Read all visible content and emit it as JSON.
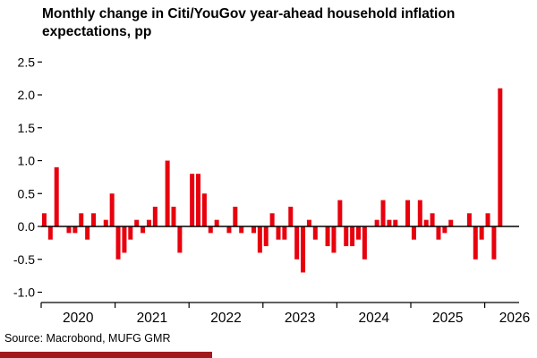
{
  "title": "Monthly change in Citi/YouGov year-ahead household inflation expectations, pp",
  "source": "Source: Macrobond, MUFG GMR",
  "colors": {
    "bar": "#e8000d",
    "axis": "#000000",
    "text": "#000000",
    "brand_strip": "#a01a1d",
    "background": "#ffffff"
  },
  "chart_data": {
    "type": "bar",
    "title": "Monthly change in Citi/YouGov year-ahead household inflation expectations, pp",
    "xlabel": "",
    "ylabel": "pp",
    "ylim": [
      -1.0,
      2.5
    ],
    "grid": false,
    "y_ticks": [
      "2.5",
      "2.0",
      "1.5",
      "1.0",
      "0.5",
      "0.0",
      "-0.5",
      "-1.0"
    ],
    "y_tick_values": [
      2.5,
      2.0,
      1.5,
      1.0,
      0.5,
      0.0,
      -0.5,
      -1.0
    ],
    "x_tick_years": [
      "2020",
      "2021",
      "2022",
      "2023",
      "2024",
      "2025",
      "2026"
    ],
    "start_month": "2020-01",
    "months": [
      "2020-01",
      "2020-02",
      "2020-03",
      "2020-04",
      "2020-05",
      "2020-06",
      "2020-07",
      "2020-08",
      "2020-09",
      "2020-10",
      "2020-11",
      "2020-12",
      "2021-01",
      "2021-02",
      "2021-03",
      "2021-04",
      "2021-05",
      "2021-06",
      "2021-07",
      "2021-08",
      "2021-09",
      "2021-10",
      "2021-11",
      "2021-12",
      "2022-01",
      "2022-02",
      "2022-03",
      "2022-04",
      "2022-05",
      "2022-06",
      "2022-07",
      "2022-08",
      "2022-09",
      "2022-10",
      "2022-11",
      "2022-12",
      "2023-01",
      "2023-02",
      "2023-03",
      "2023-04",
      "2023-05",
      "2023-06",
      "2023-07",
      "2023-08",
      "2023-09",
      "2023-10",
      "2023-11",
      "2023-12",
      "2024-01",
      "2024-02",
      "2024-03",
      "2024-04",
      "2024-05",
      "2024-06",
      "2024-07",
      "2024-08",
      "2024-09",
      "2024-10",
      "2024-11",
      "2024-12",
      "2025-01",
      "2025-02",
      "2025-03",
      "2025-04",
      "2025-05",
      "2025-06",
      "2025-07",
      "2025-08",
      "2025-09",
      "2025-10",
      "2025-11",
      "2025-12",
      "2026-01",
      "2026-02",
      "2026-03"
    ],
    "values": [
      0.2,
      -0.2,
      0.9,
      0.0,
      -0.1,
      -0.1,
      0.2,
      -0.2,
      0.2,
      0.0,
      0.1,
      0.5,
      -0.5,
      -0.4,
      -0.2,
      0.1,
      -0.1,
      0.1,
      0.3,
      0.0,
      1.0,
      0.3,
      -0.4,
      0.0,
      0.8,
      0.8,
      0.5,
      -0.1,
      0.1,
      0.0,
      -0.1,
      0.3,
      -0.1,
      0.0,
      -0.1,
      -0.4,
      -0.3,
      0.2,
      -0.2,
      -0.2,
      0.3,
      -0.5,
      -0.7,
      0.1,
      -0.2,
      0.0,
      -0.3,
      -0.4,
      0.4,
      -0.3,
      -0.3,
      -0.2,
      -0.5,
      0.0,
      0.1,
      0.4,
      0.1,
      0.1,
      0.0,
      0.4,
      -0.2,
      0.4,
      0.1,
      0.2,
      -0.2,
      -0.1,
      0.1,
      0.0,
      0.0,
      0.2,
      -0.5,
      -0.2,
      0.2,
      -0.5,
      2.1
    ]
  }
}
